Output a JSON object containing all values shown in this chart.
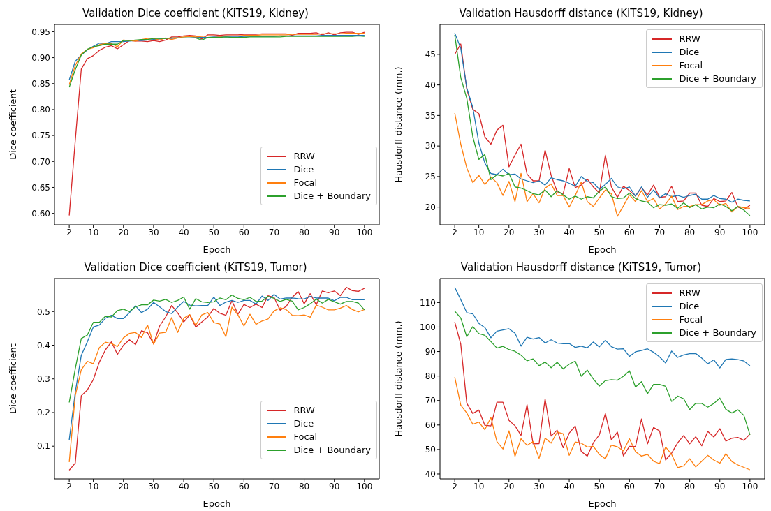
{
  "chart_data": [
    {
      "type": "line",
      "title": "Validation Dice coefficient (KiTS19, Kidney)",
      "xlabel": "Epoch",
      "ylabel": "Dice coefficient",
      "legend": "bottom right",
      "line_style": "solid",
      "x": [
        2,
        4,
        6,
        8,
        10,
        12,
        14,
        16,
        18,
        20,
        22,
        24,
        26,
        28,
        30,
        32,
        34,
        36,
        38,
        40,
        42,
        44,
        46,
        48,
        50,
        52,
        54,
        56,
        58,
        60,
        62,
        64,
        66,
        68,
        70,
        72,
        74,
        76,
        78,
        80,
        82,
        84,
        86,
        88,
        90,
        92,
        94,
        96,
        98,
        100
      ],
      "xlim": [
        -2.9,
        104.9
      ],
      "xticks": [
        2,
        10,
        20,
        30,
        40,
        50,
        60,
        70,
        80,
        90,
        100
      ],
      "ylim": [
        0.578,
        0.964
      ],
      "yticks": [
        {
          "value": 0.6,
          "label": "0.60"
        },
        {
          "value": 0.65,
          "label": "0.65"
        },
        {
          "value": 0.7,
          "label": "0.70"
        },
        {
          "value": 0.75,
          "label": "0.75"
        },
        {
          "value": 0.8,
          "label": "0.80"
        },
        {
          "value": 0.85,
          "label": "0.85"
        },
        {
          "value": 0.9,
          "label": "0.90"
        },
        {
          "value": 0.95,
          "label": "0.95"
        }
      ],
      "series": [
        {
          "name": "RRW",
          "color": "#d62728",
          "values": [
            0.596,
            0.74,
            0.878,
            0.898,
            0.904,
            0.914,
            0.92,
            0.923,
            0.917,
            0.925,
            0.933,
            0.932,
            0.932,
            0.931,
            0.933,
            0.931,
            0.934,
            0.94,
            0.94,
            0.942,
            0.943,
            0.942,
            0.936,
            0.944,
            0.944,
            0.943,
            0.944,
            0.944,
            0.944,
            0.945,
            0.945,
            0.945,
            0.946,
            0.946,
            0.946,
            0.946,
            0.946,
            0.943,
            0.947,
            0.947,
            0.947,
            0.948,
            0.944,
            0.948,
            0.944,
            0.948,
            0.949,
            0.949,
            0.945,
            0.949
          ]
        },
        {
          "name": "Dice",
          "color": "#1f77b4",
          "values": [
            0.857,
            0.893,
            0.905,
            0.915,
            0.922,
            0.928,
            0.927,
            0.931,
            0.931,
            0.931,
            0.932,
            0.933,
            0.933,
            0.934,
            0.935,
            0.936,
            0.937,
            0.937,
            0.938,
            0.938,
            0.938,
            0.939,
            0.939,
            0.939,
            0.94,
            0.94,
            0.94,
            0.94,
            0.94,
            0.941,
            0.941,
            0.941,
            0.941,
            0.941,
            0.941,
            0.942,
            0.942,
            0.942,
            0.942,
            0.942,
            0.942,
            0.942,
            0.943,
            0.943,
            0.943,
            0.943,
            0.943,
            0.943,
            0.943,
            0.943
          ]
        },
        {
          "name": "Focal",
          "color": "#ff7f0e",
          "values": [
            0.848,
            0.885,
            0.907,
            0.916,
            0.919,
            0.925,
            0.927,
            0.927,
            0.921,
            0.934,
            0.933,
            0.932,
            0.935,
            0.937,
            0.937,
            0.934,
            0.938,
            0.935,
            0.938,
            0.94,
            0.941,
            0.94,
            0.941,
            0.942,
            0.942,
            0.941,
            0.942,
            0.942,
            0.942,
            0.943,
            0.943,
            0.943,
            0.944,
            0.944,
            0.944,
            0.944,
            0.944,
            0.945,
            0.945,
            0.945,
            0.945,
            0.945,
            0.946,
            0.946,
            0.946,
            0.946,
            0.947,
            0.947,
            0.947,
            0.947
          ]
        },
        {
          "name": "Dice + Boundary",
          "color": "#2ca02c",
          "values": [
            0.843,
            0.877,
            0.905,
            0.916,
            0.921,
            0.923,
            0.926,
            0.926,
            0.926,
            0.933,
            0.933,
            0.934,
            0.935,
            0.935,
            0.937,
            0.937,
            0.937,
            0.938,
            0.938,
            0.938,
            0.938,
            0.938,
            0.934,
            0.939,
            0.939,
            0.939,
            0.94,
            0.939,
            0.939,
            0.939,
            0.94,
            0.94,
            0.94,
            0.94,
            0.94,
            0.94,
            0.941,
            0.941,
            0.941,
            0.941,
            0.941,
            0.941,
            0.941,
            0.941,
            0.941,
            0.941,
            0.941,
            0.941,
            0.942,
            0.941
          ]
        }
      ]
    },
    {
      "type": "line",
      "title": "Validation Hausdorff distance (KiTS19, Kidney)",
      "xlabel": "Epoch",
      "ylabel": "Hausdorff distance (mm.)",
      "legend": "top right",
      "line_style": "solid",
      "x": [
        2,
        4,
        6,
        8,
        10,
        12,
        14,
        16,
        18,
        20,
        22,
        24,
        26,
        28,
        30,
        32,
        34,
        36,
        38,
        40,
        42,
        44,
        46,
        48,
        50,
        52,
        54,
        56,
        58,
        60,
        62,
        64,
        66,
        68,
        70,
        72,
        74,
        76,
        78,
        80,
        82,
        84,
        86,
        88,
        90,
        92,
        94,
        96,
        98,
        100
      ],
      "xlim": [
        -2.9,
        104.9
      ],
      "xticks": [
        2,
        10,
        20,
        30,
        40,
        50,
        60,
        70,
        80,
        90,
        100
      ],
      "ylim": [
        17.1,
        49.9
      ],
      "yticks": [
        20,
        25,
        30,
        35,
        40,
        45
      ],
      "series": [
        {
          "name": "RRW",
          "color": "#d62728",
          "values": [
            45,
            46.7,
            39.3,
            36,
            35.3,
            31.5,
            30.3,
            32.6,
            33.4,
            26.6,
            28.5,
            30.3,
            25.4,
            24.3,
            24.3,
            29.3,
            25.2,
            22.5,
            22.2,
            26.3,
            23.2,
            23.6,
            24.6,
            23.3,
            22.3,
            28.5,
            23.3,
            21.6,
            23.4,
            22.7,
            21.8,
            23.2,
            22,
            23.6,
            21.6,
            21.7,
            23.4,
            20.9,
            21,
            22.3,
            22.3,
            20.3,
            20.1,
            21.4,
            20.9,
            21,
            22.4,
            20,
            19.6,
            20.3
          ]
        },
        {
          "name": "Dice",
          "color": "#1f77b4",
          "values": [
            48.5,
            46,
            39.5,
            36.3,
            30.5,
            27.2,
            25.5,
            25.3,
            26.2,
            25.3,
            25.4,
            24.6,
            24.3,
            24,
            24.3,
            23.6,
            24.8,
            24.5,
            24.3,
            23.9,
            23.4,
            25,
            24.2,
            24,
            22.9,
            23.7,
            24.7,
            23.3,
            23,
            23.3,
            21.8,
            23.3,
            21.6,
            22.8,
            21.5,
            22.2,
            21.7,
            21.9,
            21.6,
            21.9,
            22.1,
            21.3,
            21.3,
            21.9,
            21.4,
            21.3,
            20.8,
            21.3,
            21.1,
            21
          ]
        },
        {
          "name": "Focal",
          "color": "#ff7f0e",
          "values": [
            35.4,
            30.3,
            26.4,
            24,
            25.2,
            23.7,
            24.9,
            24,
            21.9,
            24.2,
            20.9,
            25.5,
            20.9,
            22.2,
            20.7,
            23.1,
            23.8,
            21.9,
            21.9,
            20,
            21.9,
            24.1,
            20.9,
            20.1,
            21.5,
            22.8,
            22.2,
            18.5,
            20.2,
            22,
            20.9,
            22.7,
            20.9,
            21.4,
            19.7,
            20.5,
            21.8,
            19.6,
            20.1,
            20.1,
            20.4,
            20.4,
            21,
            21.2,
            20.3,
            20.6,
            19.2,
            20.1,
            19.9,
            19.8
          ]
        },
        {
          "name": "Dice + Boundary",
          "color": "#2ca02c",
          "values": [
            48.2,
            41.2,
            37.8,
            31.5,
            27.8,
            28.6,
            24.5,
            25.3,
            25.1,
            25.5,
            23.3,
            23.1,
            22.7,
            22.2,
            22,
            22.8,
            21.7,
            22.7,
            22,
            21.3,
            21.8,
            21.3,
            21.7,
            21.5,
            22.6,
            23.3,
            21.7,
            21.4,
            21.5,
            22.3,
            21.4,
            21,
            20.8,
            19.9,
            20.4,
            20.3,
            20.5,
            19.8,
            20.7,
            19.9,
            20.4,
            19.7,
            20,
            19.9,
            20.5,
            20.1,
            19.4,
            20.1,
            19.5,
            18.6
          ]
        }
      ]
    },
    {
      "type": "line",
      "title": "Validation Dice coefficient (KiTS19, Tumor)",
      "xlabel": "Epoch",
      "ylabel": "Dice coefficient",
      "legend": "bottom right",
      "line_style": "solid",
      "x": [
        2,
        4,
        6,
        8,
        10,
        12,
        14,
        16,
        18,
        20,
        22,
        24,
        26,
        28,
        30,
        32,
        34,
        36,
        38,
        40,
        42,
        44,
        46,
        48,
        50,
        52,
        54,
        56,
        58,
        60,
        62,
        64,
        66,
        68,
        70,
        72,
        74,
        76,
        78,
        80,
        82,
        84,
        86,
        88,
        90,
        92,
        94,
        96,
        98,
        100
      ],
      "xlim": [
        -2.9,
        104.9
      ],
      "xticks": [
        2,
        10,
        20,
        30,
        40,
        50,
        60,
        70,
        80,
        90,
        100
      ],
      "ylim": [
        0.003,
        0.598
      ],
      "yticks": [
        0.1,
        0.2,
        0.3,
        0.4,
        0.5
      ],
      "series": [
        {
          "name": "RRW",
          "color": "#d62728",
          "values": [
            0.029,
            0.05,
            0.25,
            0.267,
            0.298,
            0.35,
            0.386,
            0.41,
            0.373,
            0.4,
            0.416,
            0.402,
            0.443,
            0.437,
            0.404,
            0.457,
            0.484,
            0.518,
            0.496,
            0.469,
            0.49,
            0.454,
            0.469,
            0.484,
            0.509,
            0.495,
            0.489,
            0.532,
            0.492,
            0.521,
            0.512,
            0.522,
            0.512,
            0.547,
            0.542,
            0.504,
            0.515,
            0.542,
            0.559,
            0.523,
            0.553,
            0.52,
            0.561,
            0.556,
            0.561,
            0.547,
            0.572,
            0.562,
            0.56,
            0.569
          ]
        },
        {
          "name": "Dice",
          "color": "#1f77b4",
          "values": [
            0.119,
            0.26,
            0.37,
            0.41,
            0.454,
            0.46,
            0.48,
            0.489,
            0.479,
            0.479,
            0.497,
            0.517,
            0.497,
            0.507,
            0.527,
            0.514,
            0.5,
            0.494,
            0.513,
            0.53,
            0.519,
            0.517,
            0.518,
            0.518,
            0.543,
            0.518,
            0.528,
            0.533,
            0.527,
            0.533,
            0.533,
            0.522,
            0.546,
            0.533,
            0.551,
            0.537,
            0.54,
            0.54,
            0.538,
            0.537,
            0.545,
            0.54,
            0.54,
            0.54,
            0.532,
            0.542,
            0.542,
            0.535,
            0.535,
            0.535
          ]
        },
        {
          "name": "Focal",
          "color": "#ff7f0e",
          "values": [
            0.053,
            0.25,
            0.327,
            0.352,
            0.345,
            0.393,
            0.409,
            0.405,
            0.396,
            0.422,
            0.435,
            0.438,
            0.423,
            0.46,
            0.403,
            0.436,
            0.438,
            0.482,
            0.438,
            0.48,
            0.491,
            0.459,
            0.49,
            0.497,
            0.467,
            0.463,
            0.425,
            0.513,
            0.49,
            0.457,
            0.492,
            0.462,
            0.472,
            0.478,
            0.502,
            0.511,
            0.506,
            0.489,
            0.488,
            0.49,
            0.483,
            0.519,
            0.513,
            0.505,
            0.505,
            0.51,
            0.518,
            0.506,
            0.499,
            0.506
          ]
        },
        {
          "name": "Dice + Boundary",
          "color": "#2ca02c",
          "values": [
            0.23,
            0.33,
            0.42,
            0.43,
            0.468,
            0.468,
            0.486,
            0.484,
            0.503,
            0.507,
            0.5,
            0.514,
            0.52,
            0.52,
            0.534,
            0.531,
            0.536,
            0.527,
            0.533,
            0.543,
            0.507,
            0.538,
            0.529,
            0.527,
            0.529,
            0.54,
            0.535,
            0.549,
            0.539,
            0.535,
            0.542,
            0.53,
            0.531,
            0.545,
            0.539,
            0.53,
            0.536,
            0.531,
            0.505,
            0.512,
            0.523,
            0.537,
            0.525,
            0.536,
            0.529,
            0.522,
            0.53,
            0.53,
            0.525,
            0.505
          ]
        }
      ]
    },
    {
      "type": "line",
      "title": "Validation Hausdorff distance (KiTS19, Tumor)",
      "xlabel": "Epoch",
      "ylabel": "Hausdorff distance (mm.)",
      "legend": "top right",
      "line_style": "solid",
      "x": [
        2,
        4,
        6,
        8,
        10,
        12,
        14,
        16,
        18,
        20,
        22,
        24,
        26,
        28,
        30,
        32,
        34,
        36,
        38,
        40,
        42,
        44,
        46,
        48,
        50,
        52,
        54,
        56,
        58,
        60,
        62,
        64,
        66,
        68,
        70,
        72,
        74,
        76,
        78,
        80,
        82,
        84,
        86,
        88,
        90,
        92,
        94,
        96,
        98,
        100
      ],
      "xlim": [
        -2.9,
        104.9
      ],
      "xticks": [
        2,
        10,
        20,
        30,
        40,
        50,
        60,
        70,
        80,
        90,
        100
      ],
      "ylim": [
        38,
        119.8
      ],
      "yticks": [
        40,
        50,
        60,
        70,
        80,
        90,
        100,
        110
      ],
      "series": [
        {
          "name": "RRW",
          "color": "#d62728",
          "values": [
            102.1,
            93,
            68.9,
            64.7,
            66.1,
            59.9,
            59.6,
            69.3,
            69.3,
            61.9,
            59.7,
            55.8,
            68.3,
            52.3,
            52.4,
            70.7,
            55.5,
            57.9,
            50.7,
            56.7,
            59.6,
            49.2,
            47.3,
            52.7,
            56,
            64.7,
            53.9,
            57.1,
            47.4,
            51.3,
            51.2,
            62.5,
            52.3,
            59,
            57.6,
            45.7,
            48.5,
            52.7,
            55.7,
            52.3,
            55.2,
            51.5,
            57.4,
            55.1,
            58.5,
            53.4,
            54.6,
            54.9,
            53.7,
            56.3
          ]
        },
        {
          "name": "Dice",
          "color": "#1f77b4",
          "values": [
            116.2,
            111.2,
            105.9,
            105.4,
            101.5,
            99.8,
            95.6,
            98.3,
            98.8,
            99.3,
            97.5,
            92.2,
            95.8,
            95.1,
            95.7,
            93.5,
            94.8,
            93.5,
            93.2,
            93.3,
            91.7,
            92.2,
            91.5,
            93.9,
            91.9,
            94.6,
            92,
            91,
            91.1,
            88,
            89.9,
            90.4,
            91.1,
            89.7,
            87.8,
            85.3,
            90.2,
            87.6,
            88.6,
            89.1,
            89.2,
            87.3,
            85,
            86.6,
            83.3,
            86.8,
            87,
            86.7,
            86.1,
            84.2
          ]
        },
        {
          "name": "Focal",
          "color": "#ff7f0e",
          "values": [
            79.6,
            68.1,
            64.9,
            60.3,
            61.2,
            58.1,
            63.1,
            53.2,
            50.2,
            57.6,
            47.2,
            54.4,
            51.7,
            53.2,
            46.4,
            54.6,
            52.6,
            57.1,
            56.4,
            47.6,
            53.1,
            52.6,
            51,
            51.3,
            48,
            46.2,
            51.8,
            51.1,
            49.4,
            54.4,
            49.1,
            47.3,
            48,
            45.2,
            44.2,
            51,
            48,
            42.6,
            43.3,
            46.2,
            42.9,
            45.2,
            47.6,
            45.7,
            44.4,
            48.3,
            45.1,
            43.7,
            42.7,
            41.7
          ]
        },
        {
          "name": "Dice + Boundary",
          "color": "#2ca02c",
          "values": [
            106.5,
            103.7,
            96,
            100.2,
            97.3,
            96.6,
            94.1,
            91.4,
            92.1,
            90.8,
            90.1,
            88.5,
            86.2,
            87,
            84.2,
            85.7,
            83.4,
            85.6,
            82.9,
            84.8,
            86.1,
            79.9,
            82.4,
            78.8,
            75.9,
            78.1,
            78.5,
            78.3,
            79.9,
            82.1,
            75.5,
            77.7,
            72.8,
            76.6,
            76.6,
            75.8,
            69.6,
            71.8,
            70.7,
            66.3,
            68.9,
            68.8,
            67.3,
            68.8,
            71,
            66.4,
            64.9,
            66.2,
            63.9,
            56
          ]
        }
      ]
    }
  ]
}
